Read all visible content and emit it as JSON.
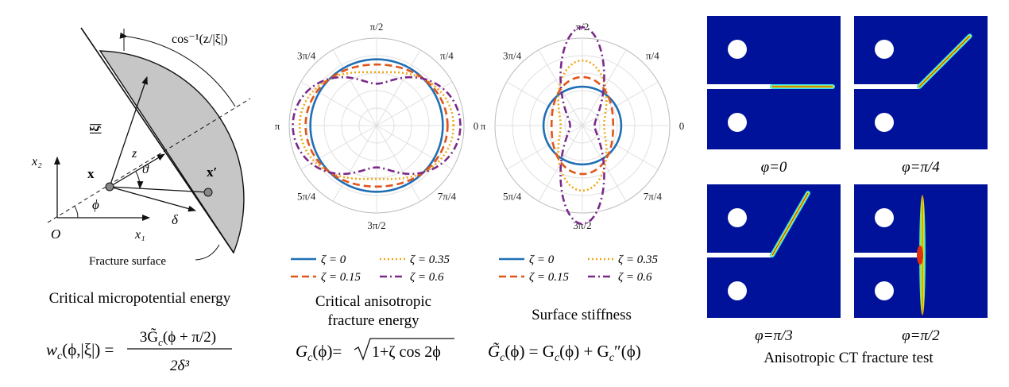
{
  "panel_a": {
    "labels": {
      "acos": "cos⁻¹(z/|ξ|)",
      "xi": "|ξ|",
      "z": "z",
      "theta": "ϑ",
      "x": "x",
      "xprime": "x′",
      "x2": "x₂",
      "x1": "x₁",
      "phi": "ϕ",
      "delta": "δ",
      "origin": "O",
      "fracture_surface": "Fracture surface"
    },
    "caption": "Critical micropotential energy",
    "eq_lhs": "w",
    "eq_lhs_sub": "c",
    "eq_lhs_args": "(ϕ,|ξ|) =",
    "eq_num": "3G̃",
    "eq_num_sub": "c",
    "eq_num_args": "(ϕ + π/2)",
    "eq_den": "2δ³"
  },
  "polar_tick_labels": [
    "0",
    "π/4",
    "π/2",
    "3π/4",
    "π",
    "5π/4",
    "3π/2",
    "7π/4"
  ],
  "legend": [
    {
      "label": "ζ = 0",
      "color": "#1f6fb4",
      "dash": ""
    },
    {
      "label": "ζ = 0.35",
      "color": "#f0a818",
      "dash": "2,3"
    },
    {
      "label": "ζ = 0.15",
      "color": "#e0561a",
      "dash": "9,5"
    },
    {
      "label": "ζ = 0.6",
      "color": "#7a2a8a",
      "dash": "9,4,2,4"
    }
  ],
  "panel_b": {
    "caption_line1": "Critical anisotropic",
    "caption_line2": "fracture energy",
    "eq_lhs": "G",
    "eq_lhs_sub": "c",
    "eq_lhs_args": "(ϕ)=",
    "eq_rad": "1+ζ cos 2ϕ"
  },
  "panel_c": {
    "caption": "Surface stiffness",
    "eq_lhs": "G̃",
    "eq_lhs_sub": "c",
    "eq_mid1": "(ϕ) = G",
    "eq_mid1_sub": "c",
    "eq_mid2": "(ϕ) + G",
    "eq_mid2_sub": "c",
    "eq_end": "″(ϕ)"
  },
  "chart_data": [
    {
      "type": "polar-line",
      "function": "r = sqrt(1 + ζ·cos 2ϕ)",
      "theta_ticks": [
        "0",
        "π/4",
        "π/2",
        "3π/4",
        "π",
        "5π/4",
        "3π/2",
        "7π/4"
      ],
      "series": [
        {
          "name": "ζ = 0",
          "zeta": 0
        },
        {
          "name": "ζ = 0.15",
          "zeta": 0.15
        },
        {
          "name": "ζ = 0.35",
          "zeta": 0.35
        },
        {
          "name": "ζ = 0.6",
          "zeta": 0.6
        }
      ]
    },
    {
      "type": "polar-line",
      "function": "r = G(ϕ) + G″(ϕ), G = sqrt(1 + ζ·cos 2ϕ)",
      "theta_ticks": [
        "0",
        "π/4",
        "π/2",
        "3π/4",
        "π",
        "5π/4",
        "3π/2",
        "7π/4"
      ],
      "series": [
        {
          "name": "ζ = 0",
          "zeta": 0
        },
        {
          "name": "ζ = 0.15",
          "zeta": 0.15
        },
        {
          "name": "ζ = 0.35",
          "zeta": 0.35
        },
        {
          "name": "ζ = 0.6",
          "zeta": 0.6
        }
      ]
    }
  ],
  "panel_d": {
    "images": [
      {
        "label": "φ=0",
        "angle_deg": 0
      },
      {
        "label": "φ=π/4",
        "angle_deg": 45
      },
      {
        "label": "φ=π/3",
        "angle_deg": 60
      },
      {
        "label": "φ=π/2",
        "angle_deg": 90
      }
    ],
    "caption": "Anisotropic CT fracture test",
    "background": "#00129a"
  }
}
